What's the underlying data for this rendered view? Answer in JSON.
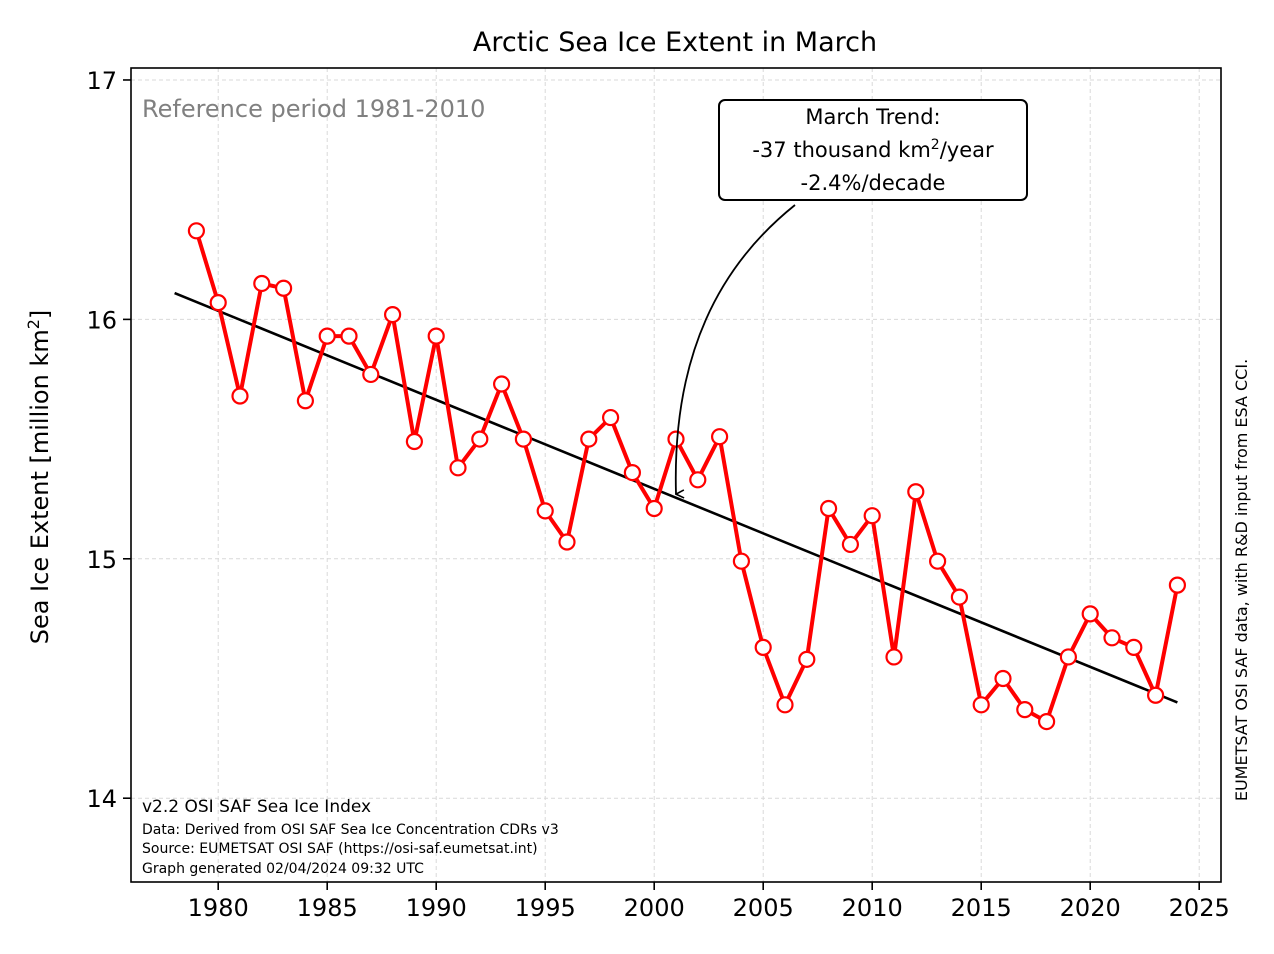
{
  "chart_data": {
    "type": "line",
    "title": "Arctic Sea Ice Extent in March",
    "ylabel_main": "Sea Ice Extent [million km",
    "ylabel_sup": "2",
    "ylabel_tail": "]",
    "xlim": [
      1976,
      2026
    ],
    "ylim": [
      13.65,
      17.05
    ],
    "xticks": [
      1980,
      1985,
      1990,
      1995,
      2000,
      2005,
      2010,
      2015,
      2020,
      2025
    ],
    "yticks": [
      14,
      15,
      16,
      17
    ],
    "grid": true,
    "reference_text": "Reference period 1981-2010",
    "series": [
      {
        "color": "#ff0000",
        "marker": "open-circle",
        "x": [
          1979,
          1980,
          1981,
          1982,
          1983,
          1984,
          1985,
          1986,
          1987,
          1988,
          1989,
          1990,
          1991,
          1992,
          1993,
          1994,
          1995,
          1996,
          1997,
          1998,
          1999,
          2000,
          2001,
          2002,
          2003,
          2004,
          2005,
          2006,
          2007,
          2008,
          2009,
          2010,
          2011,
          2012,
          2013,
          2014,
          2015,
          2016,
          2017,
          2018,
          2019,
          2020,
          2021,
          2022,
          2023,
          2024
        ],
        "values": [
          16.37,
          16.07,
          15.68,
          16.15,
          16.13,
          15.66,
          15.93,
          15.93,
          15.77,
          16.02,
          15.49,
          15.93,
          15.38,
          15.5,
          15.73,
          15.5,
          15.2,
          15.07,
          15.5,
          15.59,
          15.36,
          15.21,
          15.5,
          15.33,
          15.51,
          14.99,
          14.63,
          14.39,
          14.58,
          15.21,
          15.06,
          15.18,
          14.59,
          15.28,
          14.99,
          14.84,
          14.39,
          14.5,
          14.37,
          14.32,
          14.59,
          14.77,
          14.67,
          14.63,
          14.43,
          14.89
        ]
      }
    ],
    "trend": {
      "color": "#000000",
      "x": [
        1978,
        2024
      ],
      "values": [
        16.11,
        14.4
      ]
    },
    "annotation": {
      "line1": "March Trend:",
      "line2_main": "-37 thousand km",
      "line2_sup": "2",
      "line2_tail": "/year",
      "line3": "-2.4%/decade",
      "target": [
        2001,
        15.27
      ]
    },
    "footer": [
      "v2.2 OSI SAF Sea Ice Index",
      "Data: Derived from OSI SAF Sea Ice Concentration CDRs v3",
      "Source: EUMETSAT OSI SAF (https://osi-saf.eumetsat.int)",
      "Graph generated 02/04/2024 09:32 UTC"
    ],
    "credit": "EUMETSAT OSI SAF data, with R&D input from ESA CCI."
  }
}
